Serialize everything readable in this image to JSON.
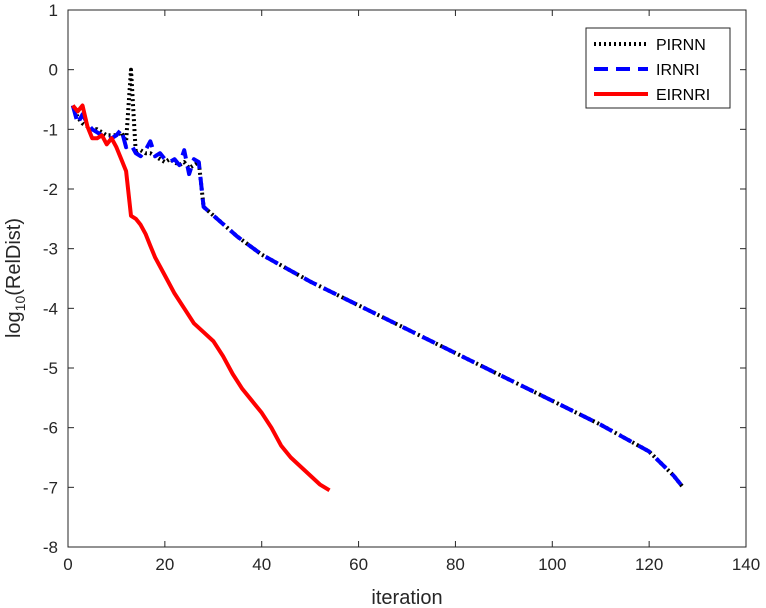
{
  "chart_data": {
    "type": "line",
    "title": "",
    "xlabel": "iteration",
    "ylabel": {
      "base": "log",
      "sub": "10",
      "rest": "(RelDist)"
    },
    "xlim": [
      0,
      140
    ],
    "ylim": [
      -8,
      1
    ],
    "xticks": [
      0,
      20,
      40,
      60,
      80,
      100,
      120,
      140
    ],
    "yticks": [
      1,
      0,
      -1,
      -2,
      -3,
      -4,
      -5,
      -6,
      -7,
      -8
    ],
    "grid": false,
    "legend_position": "top-right",
    "series": [
      {
        "name": "PIRNN",
        "color": "#000000",
        "style": "dotted",
        "x": [
          1,
          2,
          3,
          4,
          5,
          6,
          7,
          8,
          9,
          10,
          11,
          12,
          13,
          14,
          15,
          16,
          17,
          18,
          19,
          20,
          21,
          22,
          23,
          24,
          25,
          26,
          27,
          28,
          35,
          40,
          50,
          60,
          70,
          80,
          90,
          100,
          110,
          120,
          125,
          127
        ],
        "y": [
          -0.6,
          -0.8,
          -0.9,
          -0.95,
          -1.0,
          -1.0,
          -1.05,
          -1.1,
          -1.1,
          -1.1,
          -1.05,
          -1.2,
          0.0,
          -1.4,
          -1.35,
          -1.4,
          -1.4,
          -1.45,
          -1.5,
          -1.55,
          -1.5,
          -1.55,
          -1.6,
          -1.55,
          -1.65,
          -1.6,
          -1.55,
          -2.3,
          -2.8,
          -3.1,
          -3.55,
          -3.95,
          -4.35,
          -4.75,
          -5.15,
          -5.55,
          -5.95,
          -6.4,
          -6.8,
          -7.0
        ]
      },
      {
        "name": "IRNRI",
        "color": "#0000ff",
        "style": "dashed",
        "x": [
          1,
          2,
          3,
          4,
          5,
          6,
          7,
          8,
          9,
          10,
          11,
          12,
          13,
          14,
          15,
          16,
          17,
          18,
          19,
          20,
          21,
          22,
          23,
          24,
          25,
          26,
          27,
          28,
          35,
          40,
          50,
          60,
          70,
          80,
          90,
          100,
          110,
          120,
          125,
          127
        ],
        "y": [
          -0.6,
          -0.9,
          -0.75,
          -0.9,
          -1.0,
          -1.05,
          -1.1,
          -1.15,
          -1.15,
          -1.1,
          -1.0,
          -1.3,
          -1.25,
          -1.4,
          -1.45,
          -1.35,
          -1.2,
          -1.45,
          -1.4,
          -1.5,
          -1.55,
          -1.5,
          -1.6,
          -1.35,
          -1.75,
          -1.5,
          -1.55,
          -2.3,
          -2.8,
          -3.1,
          -3.55,
          -3.95,
          -4.35,
          -4.75,
          -5.15,
          -5.55,
          -5.95,
          -6.4,
          -6.8,
          -7.0
        ]
      },
      {
        "name": "EIRNRI",
        "color": "#ff0000",
        "style": "solid",
        "x": [
          1,
          2,
          3,
          4,
          5,
          6,
          7,
          8,
          9,
          10,
          11,
          12,
          13,
          14,
          15,
          16,
          17,
          18,
          20,
          22,
          24,
          26,
          28,
          30,
          32,
          34,
          36,
          38,
          40,
          42,
          44,
          46,
          48,
          50,
          52,
          54
        ],
        "y": [
          -0.6,
          -0.7,
          -0.6,
          -0.95,
          -1.15,
          -1.15,
          -1.1,
          -1.25,
          -1.15,
          -1.3,
          -1.5,
          -1.7,
          -2.45,
          -2.5,
          -2.6,
          -2.75,
          -2.95,
          -3.15,
          -3.45,
          -3.75,
          -4.0,
          -4.25,
          -4.4,
          -4.55,
          -4.8,
          -5.1,
          -5.35,
          -5.55,
          -5.75,
          -6.0,
          -6.3,
          -6.5,
          -6.65,
          -6.8,
          -6.95,
          -7.05
        ]
      }
    ]
  }
}
